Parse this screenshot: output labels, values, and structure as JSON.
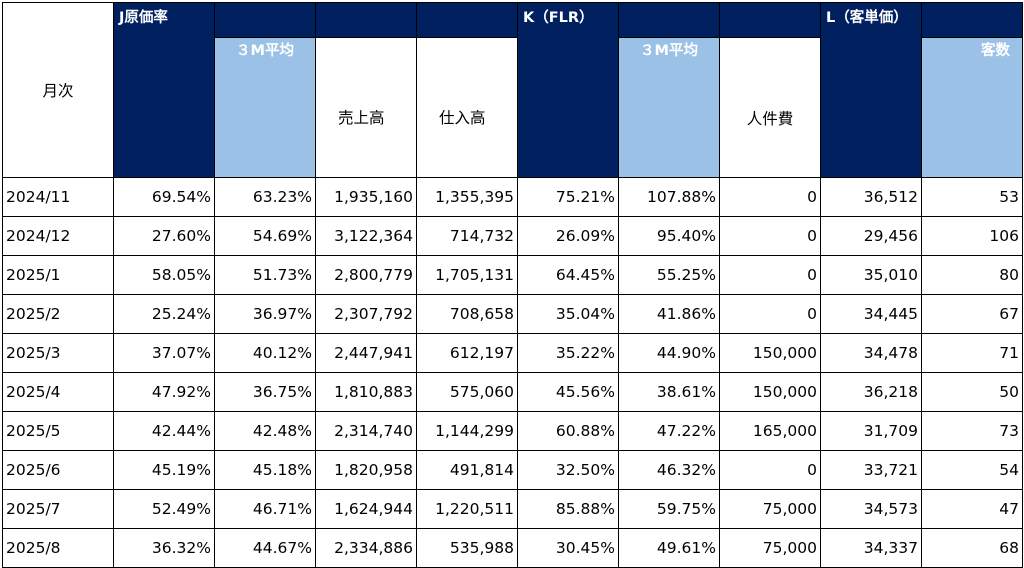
{
  "headers": {
    "month": "月次",
    "j_group": "J原価率",
    "j_avg": "３M平均",
    "sales": "売上高",
    "purchases": "仕入高",
    "k_group": "K（FLR）",
    "k_avg": "３M平均",
    "labor": "人件費",
    "l_group": "L（客単価）",
    "customers": "客数"
  },
  "rows": [
    {
      "month": "2024/11",
      "j_rate": "69.54%",
      "j_avg": "63.23%",
      "sales": "1,935,160",
      "purchases": "1,355,395",
      "k_rate": "75.21%",
      "k_avg": "107.88%",
      "labor": "0",
      "l_price": "36,512",
      "customers": "53"
    },
    {
      "month": "2024/12",
      "j_rate": "27.60%",
      "j_avg": "54.69%",
      "sales": "3,122,364",
      "purchases": "714,732",
      "k_rate": "26.09%",
      "k_avg": "95.40%",
      "labor": "0",
      "l_price": "29,456",
      "customers": "106"
    },
    {
      "month": "2025/1",
      "j_rate": "58.05%",
      "j_avg": "51.73%",
      "sales": "2,800,779",
      "purchases": "1,705,131",
      "k_rate": "64.45%",
      "k_avg": "55.25%",
      "labor": "0",
      "l_price": "35,010",
      "customers": "80"
    },
    {
      "month": "2025/2",
      "j_rate": "25.24%",
      "j_avg": "36.97%",
      "sales": "2,307,792",
      "purchases": "708,658",
      "k_rate": "35.04%",
      "k_avg": "41.86%",
      "labor": "0",
      "l_price": "34,445",
      "customers": "67"
    },
    {
      "month": "2025/3",
      "j_rate": "37.07%",
      "j_avg": "40.12%",
      "sales": "2,447,941",
      "purchases": "612,197",
      "k_rate": "35.22%",
      "k_avg": "44.90%",
      "labor": "150,000",
      "l_price": "34,478",
      "customers": "71"
    },
    {
      "month": "2025/4",
      "j_rate": "47.92%",
      "j_avg": "36.75%",
      "sales": "1,810,883",
      "purchases": "575,060",
      "k_rate": "45.56%",
      "k_avg": "38.61%",
      "labor": "150,000",
      "l_price": "36,218",
      "customers": "50"
    },
    {
      "month": "2025/5",
      "j_rate": "42.44%",
      "j_avg": "42.48%",
      "sales": "2,314,740",
      "purchases": "1,144,299",
      "k_rate": "60.88%",
      "k_avg": "47.22%",
      "labor": "165,000",
      "l_price": "31,709",
      "customers": "73"
    },
    {
      "month": "2025/6",
      "j_rate": "45.19%",
      "j_avg": "45.18%",
      "sales": "1,820,958",
      "purchases": "491,814",
      "k_rate": "32.50%",
      "k_avg": "46.32%",
      "labor": "0",
      "l_price": "33,721",
      "customers": "54"
    },
    {
      "month": "2025/7",
      "j_rate": "52.49%",
      "j_avg": "46.71%",
      "sales": "1,624,944",
      "purchases": "1,220,511",
      "k_rate": "85.88%",
      "k_avg": "59.75%",
      "labor": "75,000",
      "l_price": "34,573",
      "customers": "47"
    },
    {
      "month": "2025/8",
      "j_rate": "36.32%",
      "j_avg": "44.67%",
      "sales": "2,334,886",
      "purchases": "535,988",
      "k_rate": "30.45%",
      "k_avg": "49.61%",
      "labor": "75,000",
      "l_price": "34,337",
      "customers": "68"
    }
  ]
}
